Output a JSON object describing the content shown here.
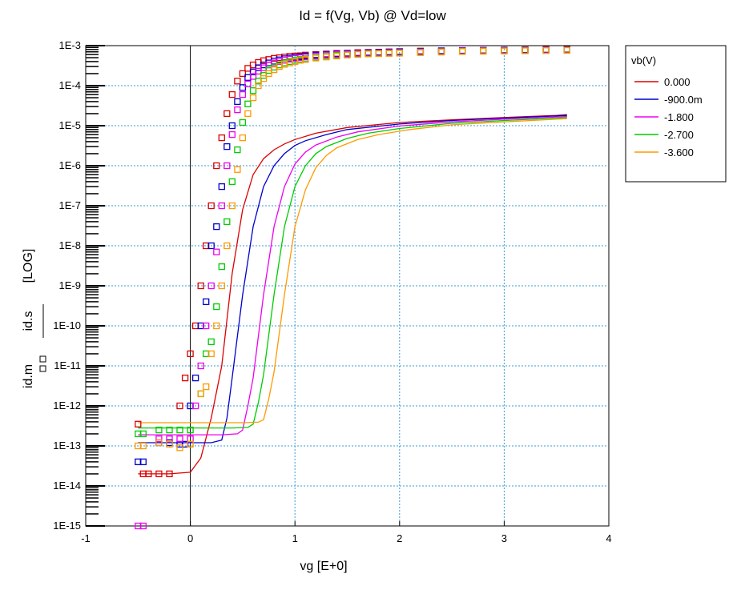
{
  "chart_data": {
    "type": "line",
    "title": "Id = f(Vg, Vb) @ Vd=low",
    "xlabel": "vg  [E+0]",
    "ylabel_lines": [
      "id.m",
      "id.s",
      "[LOG]"
    ],
    "xlim": [
      -1,
      4
    ],
    "ylim": [
      1e-15,
      0.001
    ],
    "yscale": "log",
    "x_ticks": [
      -1,
      0,
      1,
      2,
      3,
      4
    ],
    "x_tick_labels": [
      "-1",
      "0",
      "1",
      "2",
      "3",
      "4"
    ],
    "y_ticks": [
      1e-15,
      1e-14,
      1e-13,
      1e-12,
      1e-11,
      1e-10,
      1e-09,
      1e-08,
      1e-07,
      1e-06,
      1e-05,
      0.0001,
      0.001
    ],
    "y_tick_labels": [
      "1E-15",
      "1E-14",
      "1E-13",
      "1E-12",
      "1E-11",
      "1E-10",
      "1E-9",
      "1E-8",
      "1E-7",
      "1E-6",
      "1E-5",
      "1E-4",
      "1E-3"
    ],
    "grid": true,
    "legend": {
      "title": "vb(V)",
      "placement": "right",
      "entries": [
        "0.000",
        "-900.0m",
        "-1.800",
        "-2.700",
        "-3.600"
      ]
    },
    "series": [
      {
        "name": "0.000",
        "color": "#dd0000",
        "measured": {
          "x": [
            -0.5,
            -0.45,
            -0.4,
            -0.3,
            -0.2,
            -0.1,
            -0.05,
            0.0,
            0.05,
            0.1,
            0.15,
            0.2,
            0.25,
            0.3,
            0.35,
            0.4,
            0.45,
            0.5,
            0.55,
            0.6,
            0.65,
            0.7,
            0.75,
            0.8,
            0.85,
            0.9,
            0.95,
            1.0,
            1.05,
            1.1,
            1.2,
            1.3,
            1.4,
            1.5,
            1.6,
            1.7,
            1.8,
            1.9,
            2.0,
            2.2,
            2.4,
            2.6,
            2.8,
            3.0,
            3.2,
            3.4,
            3.6
          ],
          "y": [
            3.5e-13,
            2e-14,
            2e-14,
            2e-14,
            2e-14,
            1e-12,
            5e-12,
            2e-11,
            1e-10,
            1e-09,
            1e-08,
            1e-07,
            1e-06,
            5e-06,
            2e-05,
            6e-05,
            0.00013,
            0.0002,
            0.00027,
            0.00033,
            0.00038,
            0.00042,
            0.00045,
            0.00048,
            0.0005,
            0.00052,
            0.00054,
            0.00055,
            0.00056,
            0.00058,
            0.0006,
            0.00062,
            0.00064,
            0.00065,
            0.00067,
            0.00068,
            0.00069,
            0.0007,
            0.00071,
            0.00073,
            0.00074,
            0.00076,
            0.00077,
            0.00078,
            0.00079,
            0.0008,
            0.00081
          ]
        },
        "simulated": {
          "x": [
            -0.5,
            -0.2,
            0.0,
            0.1,
            0.2,
            0.3,
            0.4,
            0.5,
            0.6,
            0.7,
            0.8,
            0.9,
            1.0,
            1.2,
            1.5,
            2.0,
            2.5,
            3.0,
            3.5,
            3.6
          ],
          "y": [
            2e-14,
            2e-14,
            2.2e-14,
            5e-14,
            5e-13,
            1e-11,
            2e-09,
            8e-08,
            6e-07,
            1.5e-06,
            2.5e-06,
            3.5e-06,
            4.5e-06,
            6.5e-06,
            9e-06,
            1.2e-05,
            1.4e-05,
            1.6e-05,
            1.8e-05,
            1.9e-05
          ]
        }
      },
      {
        "name": "-900.0m",
        "color": "#0000cc",
        "measured": {
          "x": [
            -0.5,
            -0.45,
            -0.3,
            -0.2,
            -0.1,
            -0.05,
            0.0,
            0.05,
            0.1,
            0.15,
            0.2,
            0.25,
            0.3,
            0.35,
            0.4,
            0.45,
            0.5,
            0.55,
            0.6,
            0.65,
            0.7,
            0.75,
            0.8,
            0.85,
            0.9,
            0.95,
            1.0,
            1.05,
            1.1,
            1.2,
            1.3,
            1.4,
            1.5,
            1.6,
            1.7,
            1.8,
            1.9,
            2.0,
            2.2,
            2.4,
            2.6,
            2.8,
            3.0,
            3.2,
            3.4,
            3.6
          ],
          "y": [
            4e-14,
            4e-14,
            1.2e-13,
            1.2e-13,
            1.1e-13,
            1.1e-13,
            1e-12,
            5e-12,
            1e-10,
            4e-10,
            1e-08,
            3e-08,
            3e-07,
            3e-06,
            1e-05,
            4e-05,
            9e-05,
            0.00016,
            0.00022,
            0.00028,
            0.00033,
            0.00037,
            0.00041,
            0.00044,
            0.00047,
            0.00049,
            0.00051,
            0.00053,
            0.00055,
            0.00058,
            0.0006,
            0.00062,
            0.00064,
            0.00065,
            0.00067,
            0.00068,
            0.00069,
            0.0007,
            0.00072,
            0.00074,
            0.00075,
            0.00076,
            0.00077,
            0.00078,
            0.00079,
            0.0008
          ]
        },
        "simulated": {
          "x": [
            -0.5,
            0.0,
            0.2,
            0.3,
            0.35,
            0.4,
            0.5,
            0.6,
            0.7,
            0.8,
            0.9,
            1.0,
            1.1,
            1.3,
            1.5,
            2.0,
            2.5,
            3.0,
            3.5,
            3.6
          ],
          "y": [
            1.2e-13,
            1.2e-13,
            1.2e-13,
            1.4e-13,
            5e-13,
            5e-12,
            6e-10,
            3e-08,
            3e-07,
            1e-06,
            2e-06,
            3.2e-06,
            4.2e-06,
            6e-06,
            8e-06,
            1.1e-05,
            1.35e-05,
            1.55e-05,
            1.75e-05,
            1.8e-05
          ]
        }
      },
      {
        "name": "-1.800",
        "color": "#ee00ee",
        "measured": {
          "x": [
            -0.5,
            -0.45,
            -0.3,
            -0.2,
            -0.1,
            0.0,
            0.05,
            0.1,
            0.15,
            0.2,
            0.25,
            0.3,
            0.35,
            0.4,
            0.45,
            0.5,
            0.55,
            0.6,
            0.65,
            0.7,
            0.75,
            0.8,
            0.85,
            0.9,
            0.95,
            1.0,
            1.05,
            1.1,
            1.2,
            1.3,
            1.4,
            1.5,
            1.6,
            1.7,
            1.8,
            1.9,
            2.0,
            2.2,
            2.4,
            2.6,
            2.8,
            3.0,
            3.2,
            3.4,
            3.6
          ],
          "y": [
            1e-15,
            1e-15,
            1.5e-13,
            1.5e-13,
            1.5e-13,
            1.5e-13,
            1e-12,
            1e-11,
            1e-10,
            1e-09,
            7e-09,
            1e-07,
            1e-06,
            6e-06,
            2.5e-05,
            6e-05,
            0.00011,
            0.00017,
            0.00023,
            0.00028,
            0.00033,
            0.00037,
            0.0004,
            0.00043,
            0.00046,
            0.00048,
            0.0005,
            0.00052,
            0.00055,
            0.00058,
            0.0006,
            0.00062,
            0.00064,
            0.00065,
            0.00066,
            0.00067,
            0.00068,
            0.0007,
            0.00072,
            0.00074,
            0.00075,
            0.00076,
            0.00077,
            0.00078,
            0.00079
          ]
        },
        "simulated": {
          "x": [
            -0.5,
            0.0,
            0.3,
            0.45,
            0.5,
            0.55,
            0.6,
            0.7,
            0.8,
            0.9,
            1.0,
            1.1,
            1.2,
            1.4,
            1.6,
            2.0,
            2.5,
            3.0,
            3.5,
            3.6
          ],
          "y": [
            1.9e-13,
            1.9e-13,
            1.9e-13,
            2e-13,
            2.5e-13,
            1e-12,
            5e-12,
            6e-10,
            3e-08,
            3e-07,
            1.1e-06,
            2.2e-06,
            3.3e-06,
            5.2e-06,
            7e-06,
            9.8e-06,
            1.25e-05,
            1.45e-05,
            1.65e-05,
            1.7e-05
          ]
        }
      },
      {
        "name": "-2.700",
        "color": "#00cc00",
        "measured": {
          "x": [
            -0.5,
            -0.45,
            -0.3,
            -0.2,
            -0.1,
            0.0,
            0.1,
            0.15,
            0.2,
            0.25,
            0.3,
            0.35,
            0.4,
            0.45,
            0.5,
            0.55,
            0.6,
            0.65,
            0.7,
            0.75,
            0.8,
            0.85,
            0.9,
            0.95,
            1.0,
            1.05,
            1.1,
            1.2,
            1.3,
            1.4,
            1.5,
            1.6,
            1.7,
            1.8,
            1.9,
            2.0,
            2.2,
            2.4,
            2.6,
            2.8,
            3.0,
            3.2,
            3.4,
            3.6
          ],
          "y": [
            2e-13,
            2e-13,
            2.5e-13,
            2.5e-13,
            2.5e-13,
            2.5e-13,
            2e-12,
            2e-11,
            4e-11,
            3e-10,
            3e-09,
            4e-08,
            4e-07,
            2.5e-06,
            1.2e-05,
            3.5e-05,
            7.5e-05,
            0.00013,
            0.00018,
            0.00024,
            0.00029,
            0.00033,
            0.00037,
            0.0004,
            0.00043,
            0.00045,
            0.00047,
            0.00051,
            0.00054,
            0.00057,
            0.00059,
            0.00061,
            0.00063,
            0.00064,
            0.00065,
            0.00066,
            0.00068,
            0.0007,
            0.00072,
            0.00073,
            0.00074,
            0.00075,
            0.00076,
            0.00077
          ]
        },
        "simulated": {
          "x": [
            -0.5,
            0.0,
            0.4,
            0.55,
            0.6,
            0.65,
            0.7,
            0.8,
            0.9,
            1.0,
            1.1,
            1.2,
            1.3,
            1.5,
            1.7,
            2.0,
            2.5,
            3.0,
            3.5,
            3.6
          ],
          "y": [
            2.8e-13,
            2.8e-13,
            2.8e-13,
            2.9e-13,
            3.5e-13,
            1.2e-12,
            6e-12,
            6e-10,
            3e-08,
            3e-07,
            1e-06,
            2e-06,
            3e-06,
            4.8e-06,
            6.5e-06,
            8.5e-06,
            1.15e-05,
            1.35e-05,
            1.55e-05,
            1.6e-05
          ]
        }
      },
      {
        "name": "-3.600",
        "color": "#ff9900",
        "measured": {
          "x": [
            -0.5,
            -0.45,
            -0.3,
            -0.2,
            -0.1,
            0.0,
            0.1,
            0.15,
            0.2,
            0.25,
            0.3,
            0.35,
            0.4,
            0.45,
            0.5,
            0.55,
            0.6,
            0.65,
            0.7,
            0.75,
            0.8,
            0.85,
            0.9,
            0.95,
            1.0,
            1.05,
            1.1,
            1.2,
            1.3,
            1.4,
            1.5,
            1.6,
            1.7,
            1.8,
            1.9,
            2.0,
            2.2,
            2.4,
            2.6,
            2.8,
            3.0,
            3.2,
            3.4,
            3.6
          ],
          "y": [
            1e-13,
            1e-13,
            1.2e-13,
            1.1e-13,
            9e-14,
            1.1e-13,
            2e-12,
            3e-12,
            2e-11,
            1e-10,
            1e-09,
            1e-08,
            1e-07,
            8e-07,
            5e-06,
            2e-05,
            5e-05,
            0.0001,
            0.00015,
            0.0002,
            0.00025,
            0.0003,
            0.00034,
            0.00037,
            0.0004,
            0.00043,
            0.00045,
            0.00049,
            0.00052,
            0.00055,
            0.00058,
            0.0006,
            0.00062,
            0.00063,
            0.00064,
            0.00065,
            0.00067,
            0.00069,
            0.00071,
            0.00072,
            0.00073,
            0.00074,
            0.00075,
            0.00076
          ]
        },
        "simulated": {
          "x": [
            -0.5,
            0.0,
            0.5,
            0.65,
            0.7,
            0.75,
            0.8,
            0.9,
            1.0,
            1.1,
            1.2,
            1.3,
            1.4,
            1.6,
            1.8,
            2.1,
            2.5,
            3.0,
            3.5,
            3.6
          ],
          "y": [
            3.8e-13,
            3.8e-13,
            3.8e-13,
            3.9e-13,
            4.5e-13,
            1.5e-12,
            7e-12,
            6e-10,
            3e-08,
            2.5e-07,
            9e-07,
            1.8e-06,
            2.8e-06,
            4.5e-06,
            6e-06,
            8e-06,
            1.05e-05,
            1.25e-05,
            1.45e-05,
            1.5e-05
          ]
        }
      }
    ]
  }
}
